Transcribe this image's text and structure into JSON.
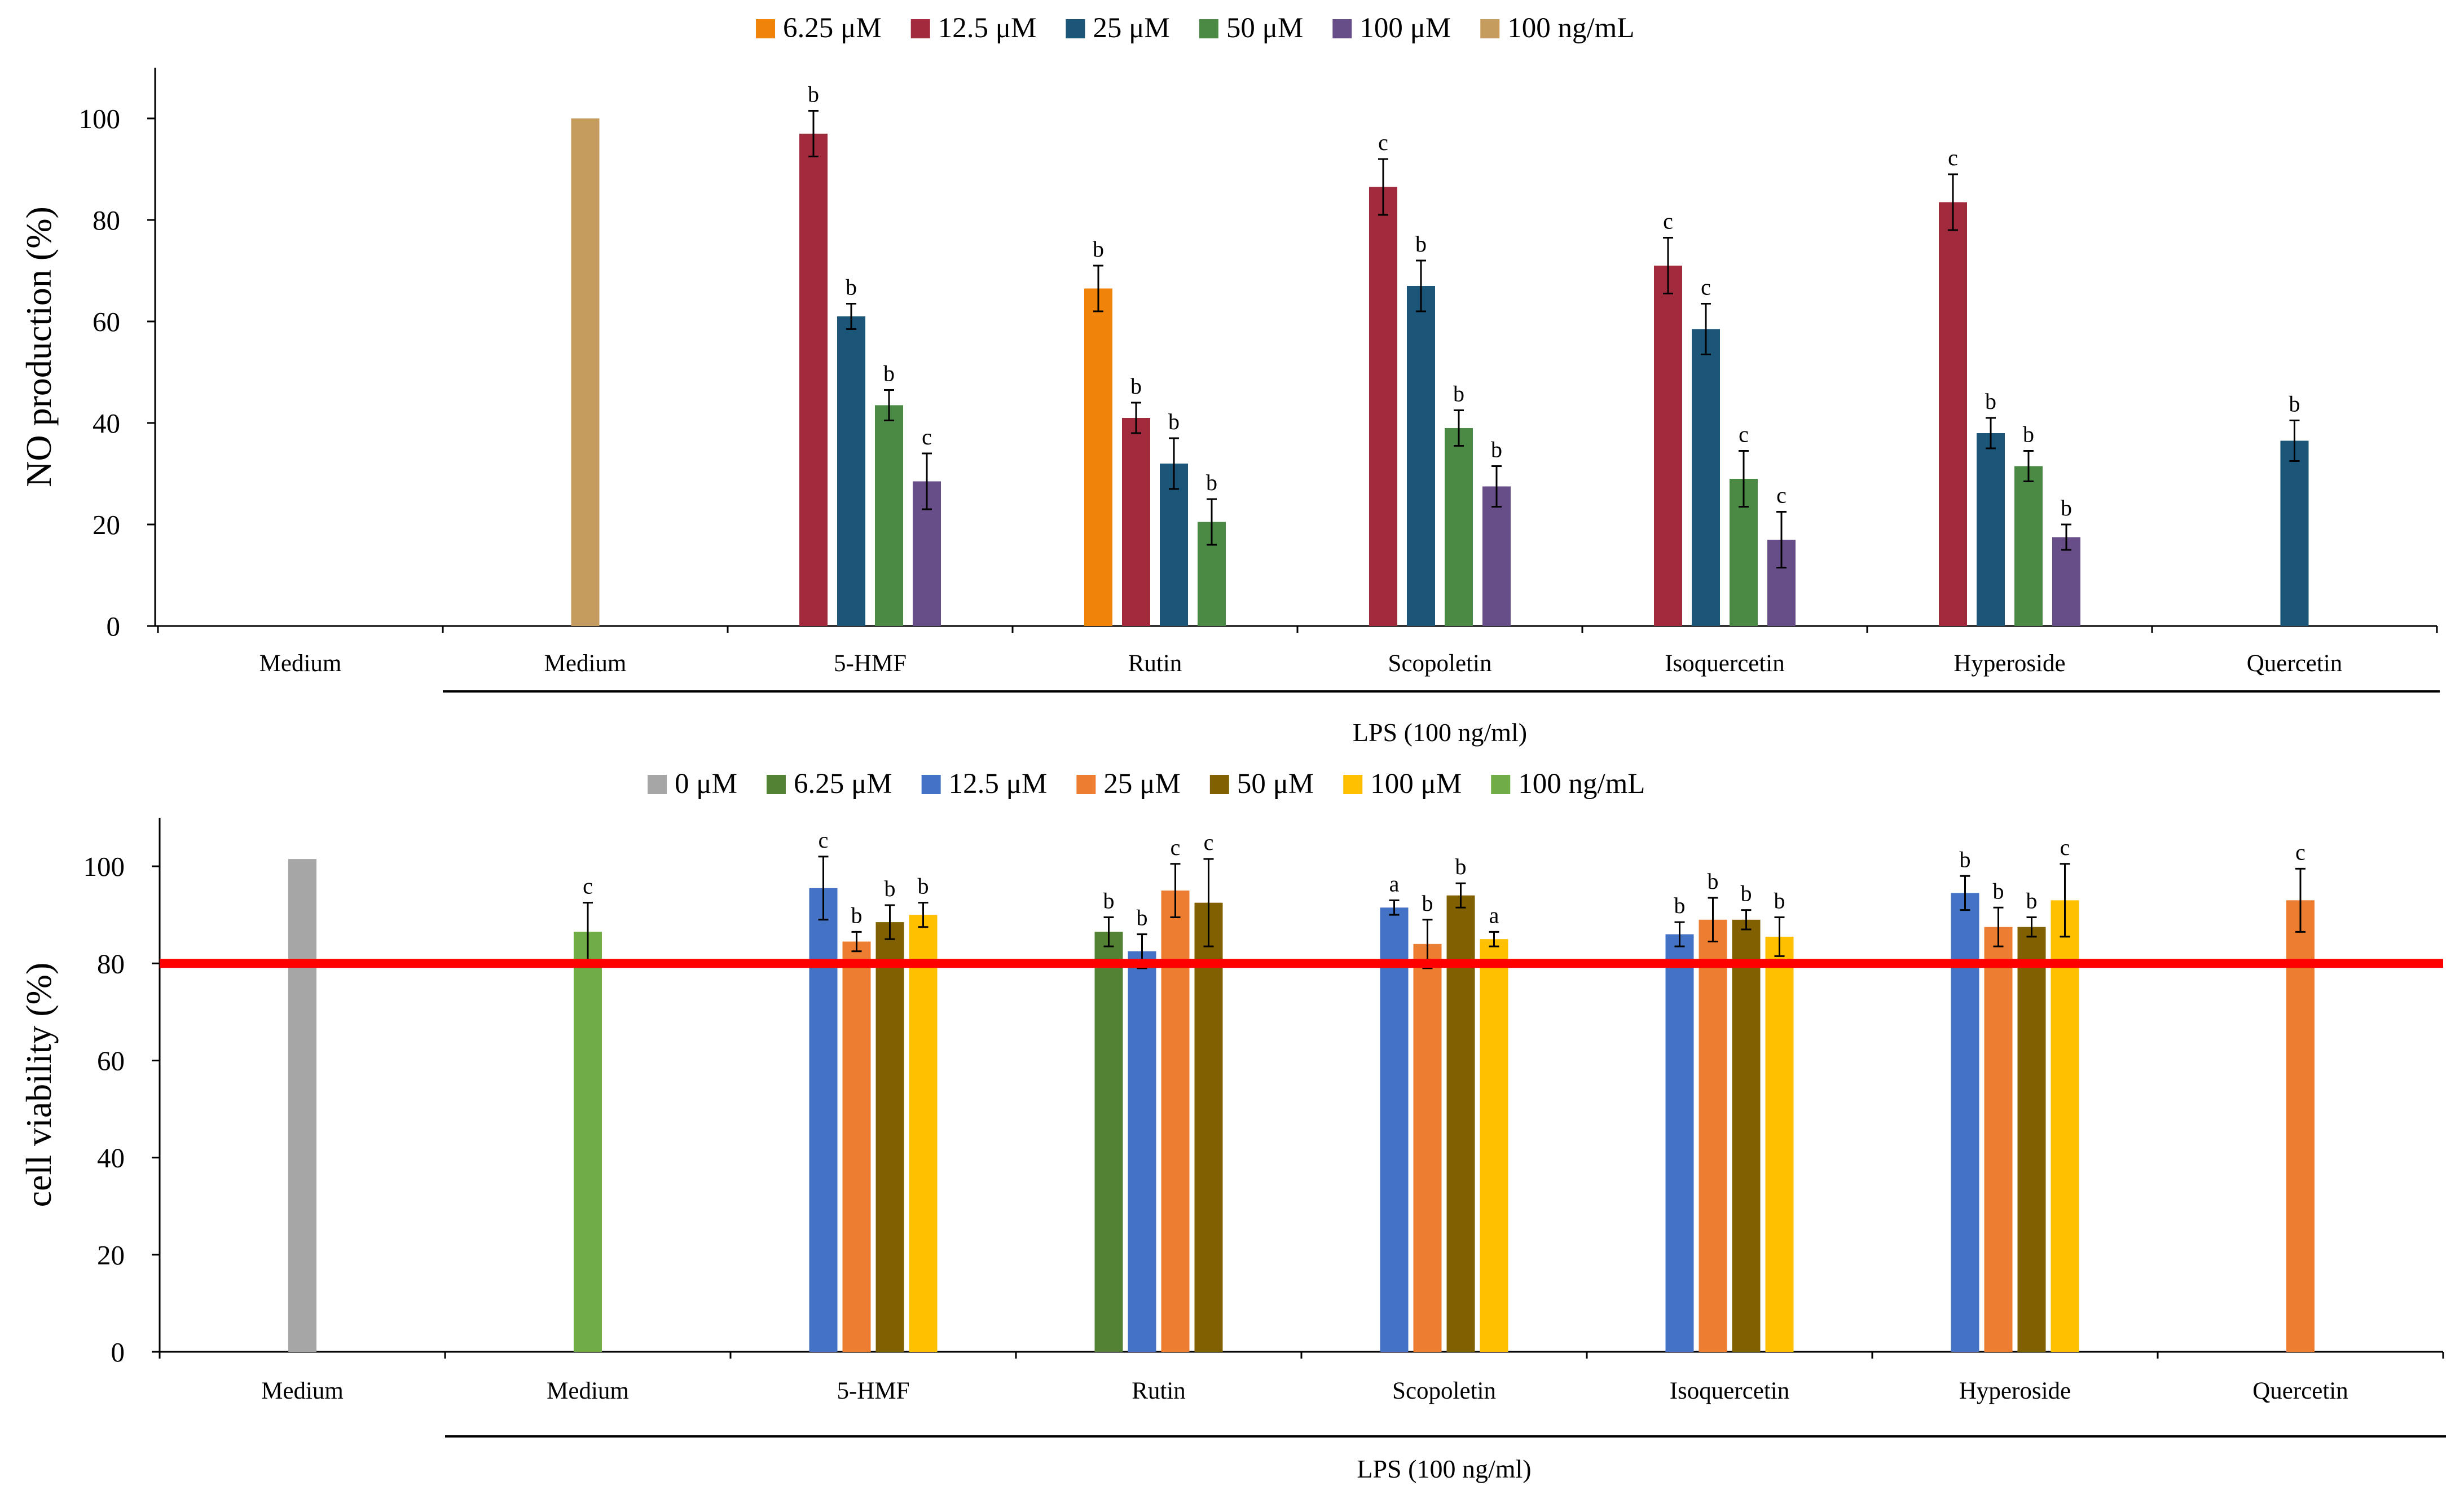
{
  "chart_data": [
    {
      "type": "bar",
      "ylabel": "NO production (%)",
      "ylim": [
        0,
        110
      ],
      "yticks": [
        0,
        20,
        40,
        60,
        80,
        100
      ],
      "categories": [
        "Medium",
        "Medium",
        "5-HMF",
        "Rutin",
        "Scopoletin",
        "Isoquercetin",
        "Hyperoside",
        "Quercetin"
      ],
      "group_label": "LPS (100 ng/ml)",
      "legend": [
        {
          "name": "6.25 μM",
          "color": "#f0830a"
        },
        {
          "name": "12.5 μM",
          "color": "#a12b3c"
        },
        {
          "name": "25 μM",
          "color": "#1b5577"
        },
        {
          "name": "50 μM",
          "color": "#4a8a45"
        },
        {
          "name": "100 μM",
          "color": "#674e88"
        },
        {
          "name": "100 ng/mL",
          "color": "#c69c5e"
        }
      ],
      "bars": [
        {
          "cat": 1,
          "series": 5,
          "value": 100,
          "err": 0,
          "label": ""
        },
        {
          "cat": 2,
          "series": 1,
          "value": 97,
          "err": 4.5,
          "label": "b"
        },
        {
          "cat": 2,
          "series": 2,
          "value": 61,
          "err": 2.5,
          "label": "b"
        },
        {
          "cat": 2,
          "series": 3,
          "value": 43.5,
          "err": 3,
          "label": "b"
        },
        {
          "cat": 2,
          "series": 4,
          "value": 28.5,
          "err": 5.5,
          "label": "c"
        },
        {
          "cat": 3,
          "series": 0,
          "value": 66.5,
          "err": 4.5,
          "label": "b"
        },
        {
          "cat": 3,
          "series": 1,
          "value": 41,
          "err": 3,
          "label": "b"
        },
        {
          "cat": 3,
          "series": 2,
          "value": 32,
          "err": 5,
          "label": "b"
        },
        {
          "cat": 3,
          "series": 3,
          "value": 20.5,
          "err": 4.5,
          "label": "b"
        },
        {
          "cat": 4,
          "series": 1,
          "value": 86.5,
          "err": 5.5,
          "label": "c"
        },
        {
          "cat": 4,
          "series": 2,
          "value": 67,
          "err": 5,
          "label": "b"
        },
        {
          "cat": 4,
          "series": 3,
          "value": 39,
          "err": 3.5,
          "label": "b"
        },
        {
          "cat": 4,
          "series": 4,
          "value": 27.5,
          "err": 4,
          "label": "b"
        },
        {
          "cat": 5,
          "series": 1,
          "value": 71,
          "err": 5.5,
          "label": "c"
        },
        {
          "cat": 5,
          "series": 2,
          "value": 58.5,
          "err": 5,
          "label": "c"
        },
        {
          "cat": 5,
          "series": 3,
          "value": 29,
          "err": 5.5,
          "label": "c"
        },
        {
          "cat": 5,
          "series": 4,
          "value": 17,
          "err": 5.5,
          "label": "c"
        },
        {
          "cat": 6,
          "series": 1,
          "value": 83.5,
          "err": 5.5,
          "label": "c"
        },
        {
          "cat": 6,
          "series": 2,
          "value": 38,
          "err": 3,
          "label": "b"
        },
        {
          "cat": 6,
          "series": 3,
          "value": 31.5,
          "err": 3,
          "label": "b"
        },
        {
          "cat": 6,
          "series": 4,
          "value": 17.5,
          "err": 2.5,
          "label": "b"
        },
        {
          "cat": 7,
          "series": 2,
          "value": 36.5,
          "err": 4,
          "label": "b"
        }
      ]
    },
    {
      "type": "bar",
      "ylabel": "cell viability (%)",
      "ylim": [
        0,
        110
      ],
      "yticks": [
        0,
        20,
        40,
        60,
        80,
        100
      ],
      "categories": [
        "Medium",
        "Medium",
        "5-HMF",
        "Rutin",
        "Scopoletin",
        "Isoquercetin",
        "Hyperoside",
        "Quercetin"
      ],
      "group_label": "LPS (100 ng/ml)",
      "threshold": 80,
      "threshold_color": "#ff0000",
      "legend": [
        {
          "name": "0 μM",
          "color": "#a6a6a6"
        },
        {
          "name": "6.25 μM",
          "color": "#548235"
        },
        {
          "name": "12.5 μM",
          "color": "#4472c4"
        },
        {
          "name": "25 μM",
          "color": "#ed7d31"
        },
        {
          "name": "50 μM",
          "color": "#806000"
        },
        {
          "name": "100 μM",
          "color": "#ffc000"
        },
        {
          "name": "100 ng/mL",
          "color": "#70ad47"
        }
      ],
      "bars": [
        {
          "cat": 0,
          "series": 0,
          "value": 101.5,
          "err": 0,
          "label": ""
        },
        {
          "cat": 1,
          "series": 6,
          "value": 86.5,
          "err": 6,
          "label": "c"
        },
        {
          "cat": 2,
          "series": 2,
          "value": 95.5,
          "err": 6.5,
          "label": "c"
        },
        {
          "cat": 2,
          "series": 3,
          "value": 84.5,
          "err": 2,
          "label": "b"
        },
        {
          "cat": 2,
          "series": 4,
          "value": 88.5,
          "err": 3.5,
          "label": "b"
        },
        {
          "cat": 2,
          "series": 5,
          "value": 90,
          "err": 2.5,
          "label": "b"
        },
        {
          "cat": 3,
          "series": 1,
          "value": 86.5,
          "err": 3,
          "label": "b"
        },
        {
          "cat": 3,
          "series": 2,
          "value": 82.5,
          "err": 3.5,
          "label": "b"
        },
        {
          "cat": 3,
          "series": 3,
          "value": 95,
          "err": 5.5,
          "label": "c"
        },
        {
          "cat": 3,
          "series": 4,
          "value": 92.5,
          "err": 9,
          "label": "c"
        },
        {
          "cat": 4,
          "series": 2,
          "value": 91.5,
          "err": 1.5,
          "label": "a"
        },
        {
          "cat": 4,
          "series": 3,
          "value": 84,
          "err": 5,
          "label": "b"
        },
        {
          "cat": 4,
          "series": 4,
          "value": 94,
          "err": 2.5,
          "label": "b"
        },
        {
          "cat": 4,
          "series": 5,
          "value": 85,
          "err": 1.5,
          "label": "a"
        },
        {
          "cat": 5,
          "series": 2,
          "value": 86,
          "err": 2.5,
          "label": "b"
        },
        {
          "cat": 5,
          "series": 3,
          "value": 89,
          "err": 4.5,
          "label": "b"
        },
        {
          "cat": 5,
          "series": 4,
          "value": 89,
          "err": 2,
          "label": "b"
        },
        {
          "cat": 5,
          "series": 5,
          "value": 85.5,
          "err": 4,
          "label": "b"
        },
        {
          "cat": 6,
          "series": 2,
          "value": 94.5,
          "err": 3.5,
          "label": "b"
        },
        {
          "cat": 6,
          "series": 3,
          "value": 87.5,
          "err": 4,
          "label": "b"
        },
        {
          "cat": 6,
          "series": 4,
          "value": 87.5,
          "err": 2,
          "label": "b"
        },
        {
          "cat": 6,
          "series": 5,
          "value": 93,
          "err": 7.5,
          "label": "c"
        },
        {
          "cat": 7,
          "series": 3,
          "value": 93,
          "err": 6.5,
          "label": "c"
        }
      ]
    }
  ]
}
